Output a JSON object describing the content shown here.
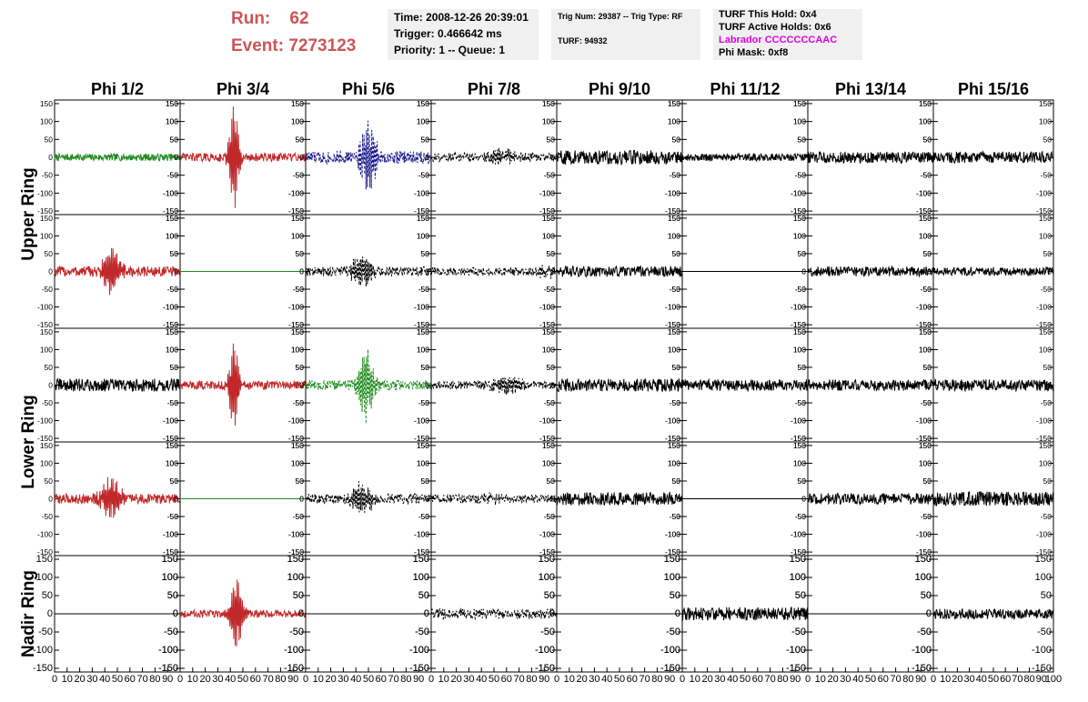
{
  "header": {
    "run_label": "Run:",
    "run_value": "62",
    "event_label": "Event:",
    "event_value": "7273123",
    "time": "Time: 2008-12-26 20:39:01",
    "trigger": "Trigger: 0.466642 ms",
    "priority": "Priority: 1 -- Queue: 1",
    "trig_num": "Trig Num: 29387 -- Trig Type: RF",
    "turf": "TURF: 94932",
    "turf_hold": "TURF This Hold: 0x4",
    "turf_active": "TURF Active Holds: 0x6",
    "labrador": "Labrador CCCCCCCAAC",
    "phi_mask": "Phi Mask: 0xf8",
    "labrador_color": "#e000e0"
  },
  "chart_data": {
    "type": "line",
    "columns": [
      "Phi 1/2",
      "Phi 3/4",
      "Phi 5/6",
      "Phi 7/8",
      "Phi 9/10",
      "Phi 11/12",
      "Phi 13/14",
      "Phi 15/16"
    ],
    "ring_labels": [
      {
        "text": "Upper Ring",
        "span": [
          0,
          1
        ]
      },
      {
        "text": "Lower Ring",
        "span": [
          2,
          3
        ]
      },
      {
        "text": "Nadir Ring",
        "span": [
          4,
          4
        ]
      }
    ],
    "xlim": [
      0,
      100
    ],
    "ylim": [
      -160,
      160
    ],
    "y_ticks": [
      -150,
      -100,
      -50,
      0,
      50,
      100,
      150
    ],
    "x_ticks": [
      0,
      10,
      20,
      30,
      40,
      50,
      60,
      70,
      80,
      90,
      100
    ],
    "grid": false,
    "colors": {
      "black": "#000000",
      "red": "#c0282a",
      "green": "#1f8a1f",
      "blue": "#1a1a8c"
    },
    "panels": [
      [
        {
          "color": "green",
          "style": "solid",
          "amp": 10,
          "pulse": 0,
          "center": 42,
          "width": 8
        },
        {
          "color": "red",
          "style": "solid",
          "amp": 12,
          "pulse": 140,
          "center": 43,
          "width": 4
        },
        {
          "color": "blue",
          "style": "dashed",
          "amp": 18,
          "pulse": 90,
          "center": 50,
          "width": 7
        },
        {
          "color": "black",
          "style": "dashed",
          "amp": 12,
          "pulse": 18,
          "center": 55,
          "width": 12
        },
        {
          "color": "black",
          "style": "solid",
          "amp": 20,
          "pulse": 0,
          "center": 50,
          "width": 10
        },
        {
          "color": "black",
          "style": "solid",
          "amp": 10,
          "pulse": 0,
          "center": 50,
          "width": 10
        },
        {
          "color": "black",
          "style": "solid",
          "amp": 16,
          "pulse": 0,
          "center": 50,
          "width": 10
        },
        {
          "color": "black",
          "style": "solid",
          "amp": 16,
          "pulse": 0,
          "center": 50,
          "width": 10
        }
      ],
      [
        {
          "color": "red",
          "style": "solid",
          "amp": 15,
          "pulse": 60,
          "center": 45,
          "width": 8
        },
        {
          "color": "green",
          "style": "solid",
          "amp": 0,
          "pulse": 0,
          "center": 50,
          "width": 10
        },
        {
          "color": "black",
          "style": "dashed",
          "amp": 14,
          "pulse": 38,
          "center": 45,
          "width": 9
        },
        {
          "color": "black",
          "style": "dashed",
          "amp": 12,
          "pulse": 14,
          "center": 90,
          "width": 8
        },
        {
          "color": "black",
          "style": "solid",
          "amp": 15,
          "pulse": 0,
          "center": 50,
          "width": 10
        },
        {
          "color": "black",
          "style": "solid",
          "amp": 0,
          "pulse": 0,
          "center": 50,
          "width": 10
        },
        {
          "color": "black",
          "style": "solid",
          "amp": 14,
          "pulse": 0,
          "center": 50,
          "width": 10
        },
        {
          "color": "black",
          "style": "solid",
          "amp": 12,
          "pulse": 0,
          "center": 50,
          "width": 10
        }
      ],
      [
        {
          "color": "black",
          "style": "solid",
          "amp": 18,
          "pulse": 0,
          "center": 50,
          "width": 10
        },
        {
          "color": "red",
          "style": "solid",
          "amp": 12,
          "pulse": 120,
          "center": 43,
          "width": 4
        },
        {
          "color": "green",
          "style": "dashed",
          "amp": 14,
          "pulse": 95,
          "center": 48,
          "width": 6
        },
        {
          "color": "black",
          "style": "dashed",
          "amp": 12,
          "pulse": 20,
          "center": 60,
          "width": 12
        },
        {
          "color": "black",
          "style": "solid",
          "amp": 18,
          "pulse": 0,
          "center": 50,
          "width": 10
        },
        {
          "color": "black",
          "style": "solid",
          "amp": 16,
          "pulse": 0,
          "center": 50,
          "width": 10
        },
        {
          "color": "black",
          "style": "solid",
          "amp": 16,
          "pulse": 0,
          "center": 50,
          "width": 10
        },
        {
          "color": "black",
          "style": "solid",
          "amp": 16,
          "pulse": 0,
          "center": 50,
          "width": 10
        }
      ],
      [
        {
          "color": "red",
          "style": "solid",
          "amp": 14,
          "pulse": 55,
          "center": 45,
          "width": 8
        },
        {
          "color": "green",
          "style": "solid",
          "amp": 0,
          "pulse": 0,
          "center": 50,
          "width": 10
        },
        {
          "color": "black",
          "style": "dashed",
          "amp": 14,
          "pulse": 40,
          "center": 45,
          "width": 9
        },
        {
          "color": "black",
          "style": "dashed",
          "amp": 12,
          "pulse": 8,
          "center": 50,
          "width": 12
        },
        {
          "color": "black",
          "style": "solid",
          "amp": 18,
          "pulse": 0,
          "center": 50,
          "width": 10
        },
        {
          "color": "black",
          "style": "solid",
          "amp": 0,
          "pulse": 0,
          "center": 50,
          "width": 10
        },
        {
          "color": "black",
          "style": "solid",
          "amp": 16,
          "pulse": 0,
          "center": 50,
          "width": 10
        },
        {
          "color": "black",
          "style": "solid",
          "amp": 20,
          "pulse": 0,
          "center": 50,
          "width": 10
        }
      ],
      [
        {
          "color": "black",
          "style": "solid",
          "amp": 0,
          "pulse": 0,
          "center": 50,
          "width": 10
        },
        {
          "color": "red",
          "style": "solid",
          "amp": 10,
          "pulse": 100,
          "center": 45,
          "width": 5
        },
        {
          "color": "black",
          "style": "solid",
          "amp": 0,
          "pulse": 0,
          "center": 50,
          "width": 10
        },
        {
          "color": "black",
          "style": "dashed",
          "amp": 14,
          "pulse": 0,
          "center": 50,
          "width": 10
        },
        {
          "color": "black",
          "style": "solid",
          "amp": 0,
          "pulse": 0,
          "center": 50,
          "width": 10
        },
        {
          "color": "black",
          "style": "solid",
          "amp": 18,
          "pulse": 0,
          "center": 50,
          "width": 10
        },
        {
          "color": "black",
          "style": "solid",
          "amp": 0,
          "pulse": 0,
          "center": 50,
          "width": 10
        },
        {
          "color": "black",
          "style": "solid",
          "amp": 14,
          "pulse": 0,
          "center": 50,
          "width": 10
        }
      ]
    ]
  }
}
